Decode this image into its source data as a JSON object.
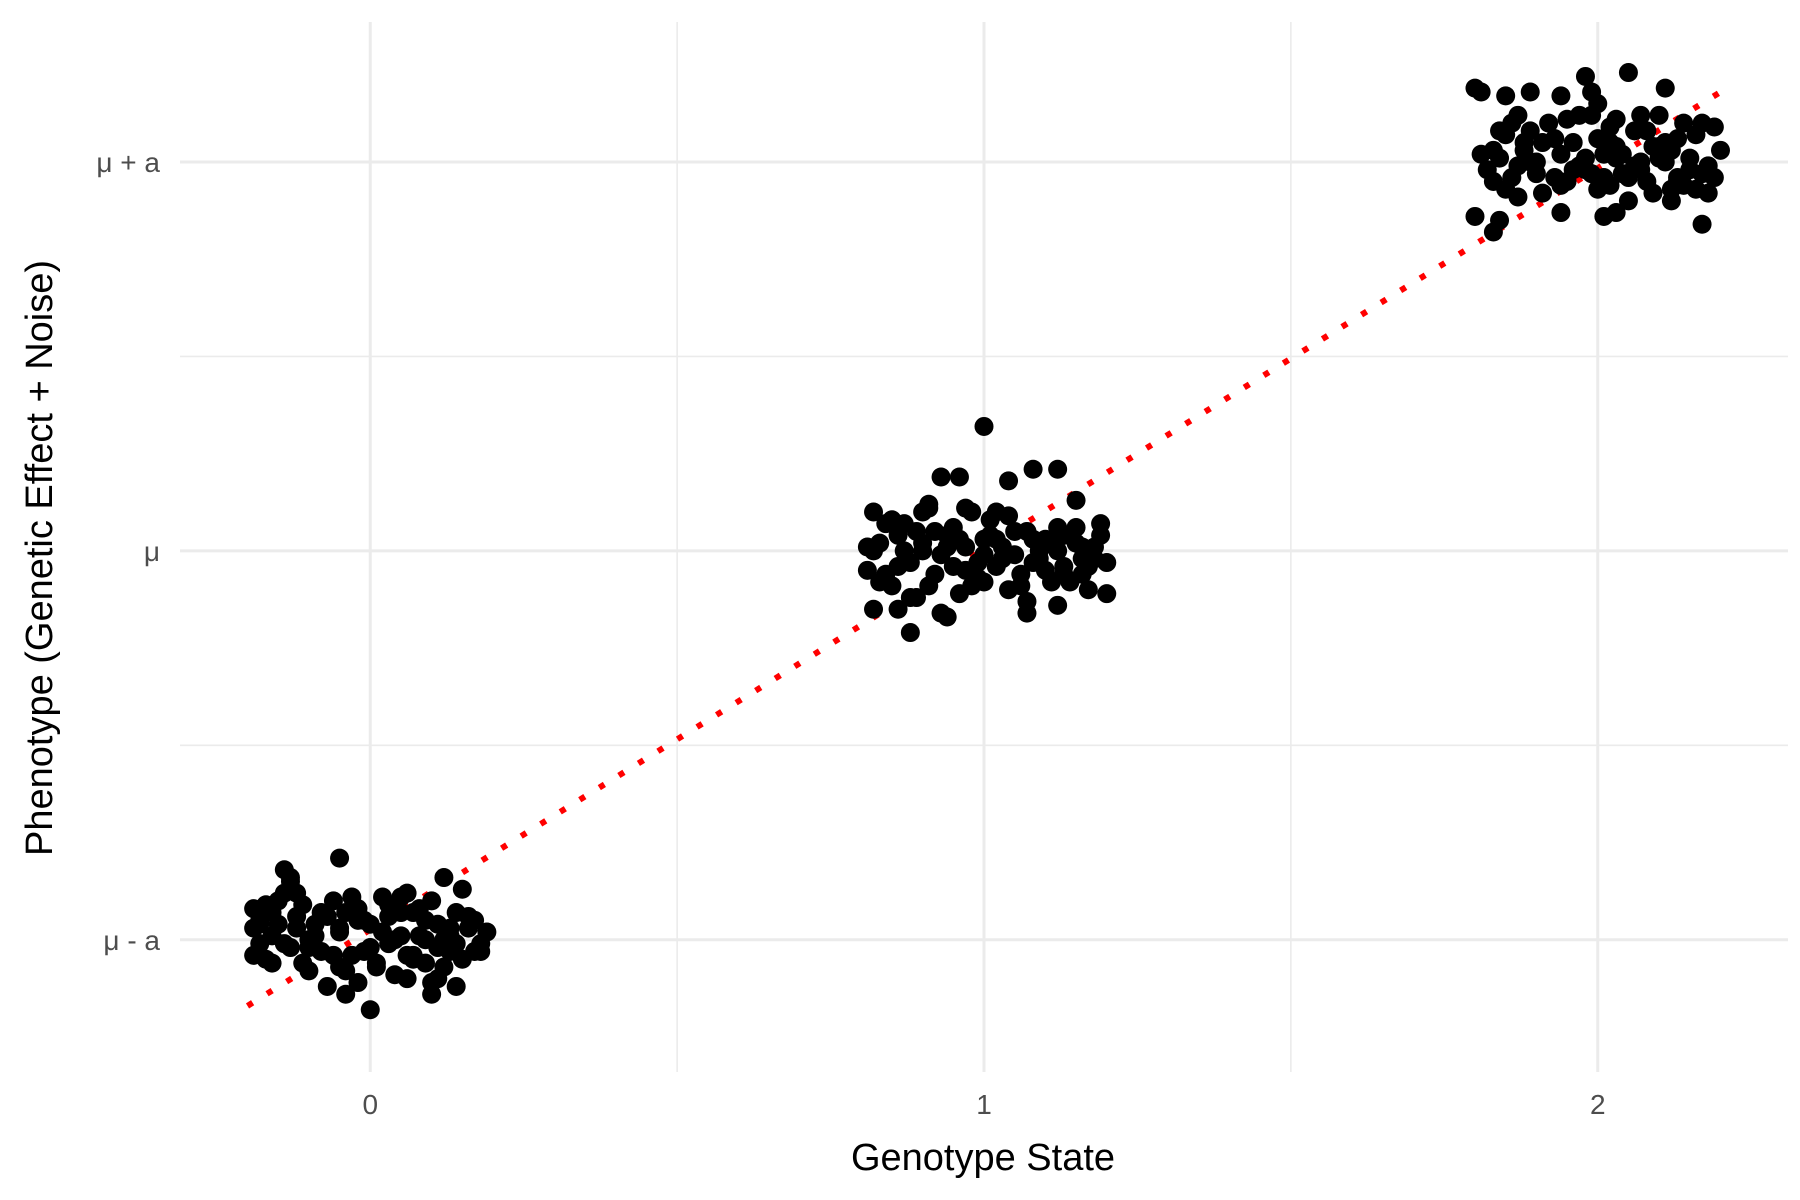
{
  "chart_data": {
    "type": "scatter",
    "title": "",
    "xlabel": "Genotype State",
    "ylabel": "Phenotype (Genetic Effect + Noise)",
    "xlim": [
      -0.31,
      2.31
    ],
    "ylim": [
      -1.34,
      1.36
    ],
    "x_ticks": [
      0,
      1,
      2
    ],
    "x_tick_labels": [
      "0",
      "1",
      "2"
    ],
    "y_ticks": [
      -1,
      0,
      1
    ],
    "y_tick_labels": [
      "μ - a",
      "μ",
      "μ + a"
    ],
    "grid": true,
    "legend": "none",
    "colors": {
      "points": "#000000",
      "trend": "#ff0000",
      "grid": "#ebebeb"
    },
    "trend_line": {
      "style": "dotted",
      "x": [
        -0.2,
        2.2
      ],
      "y": [
        -1.17,
        1.18
      ]
    },
    "series": [
      {
        "points": [
          [
            -0.19,
            -0.97
          ],
          [
            -0.18,
            -0.95
          ],
          [
            -0.16,
            -1.06
          ],
          [
            -0.14,
            -0.88
          ],
          [
            -0.12,
            -0.94
          ],
          [
            -0.1,
            -1.08
          ],
          [
            -0.09,
            -0.99
          ],
          [
            -0.07,
            -1.12
          ],
          [
            -0.05,
            -0.97
          ],
          [
            -0.03,
            -1.04
          ],
          [
            -0.02,
            -0.92
          ],
          [
            0.0,
            -1.02
          ],
          [
            0.02,
            -0.98
          ],
          [
            0.04,
            -1.09
          ],
          [
            0.05,
            -0.93
          ],
          [
            0.07,
            -1.05
          ],
          [
            0.09,
            -1.0
          ],
          [
            0.11,
            -0.96
          ],
          [
            0.12,
            -1.07
          ],
          [
            0.14,
            -1.01
          ],
          [
            0.16,
            -0.94
          ],
          [
            0.17,
            -1.03
          ],
          [
            0.19,
            -0.98
          ],
          [
            0.13,
            -0.99
          ],
          [
            0.1,
            -1.11
          ],
          [
            0.08,
            -0.92
          ],
          [
            0.06,
            -1.1
          ],
          [
            0.03,
            -0.91
          ],
          [
            0.01,
            -1.06
          ],
          [
            -0.01,
            -0.95
          ],
          [
            -0.04,
            -1.08
          ],
          [
            -0.06,
            -0.9
          ],
          [
            -0.08,
            -1.03
          ],
          [
            -0.11,
            -0.91
          ],
          [
            -0.13,
            -1.02
          ],
          [
            -0.15,
            -0.9
          ],
          [
            -0.17,
            -1.05
          ],
          [
            -0.19,
            -0.92
          ],
          [
            -0.18,
            -1.01
          ],
          [
            -0.16,
            -0.99
          ],
          [
            -0.13,
            -0.85
          ],
          [
            -0.11,
            -1.06
          ],
          [
            -0.09,
            -0.96
          ],
          [
            -0.06,
            -1.04
          ],
          [
            -0.04,
            -0.93
          ],
          [
            -0.02,
            -1.11
          ],
          [
            0.0,
            -0.96
          ],
          [
            0.03,
            -1.01
          ],
          [
            0.05,
            -0.89
          ],
          [
            0.07,
            -1.04
          ],
          [
            0.09,
            -0.95
          ],
          [
            0.11,
            -1.1
          ],
          [
            0.13,
            -0.97
          ],
          [
            0.15,
            -1.05
          ],
          [
            0.17,
            -0.95
          ],
          [
            0.18,
            -1.03
          ],
          [
            0.14,
            -0.93
          ],
          [
            0.12,
            -1.0
          ],
          [
            0.1,
            -0.9
          ],
          [
            0.08,
            -0.99
          ],
          [
            0.06,
            -0.88
          ],
          [
            0.04,
            -1.0
          ],
          [
            0.02,
            -0.89
          ],
          [
            -0.01,
            -1.03
          ],
          [
            -0.03,
            -0.89
          ],
          [
            -0.05,
            -1.07
          ],
          [
            -0.07,
            -0.94
          ],
          [
            -0.1,
            -1.0
          ],
          [
            -0.12,
            -0.88
          ],
          [
            -0.14,
            -1.01
          ],
          [
            -0.17,
            -0.91
          ],
          [
            -0.19,
            -1.04
          ],
          [
            -0.15,
            -0.96
          ],
          [
            -0.08,
            -0.93
          ],
          [
            0.01,
            -1.07
          ],
          [
            0.11,
            -1.02
          ],
          [
            0.16,
            -0.97
          ],
          [
            -0.02,
            -0.95
          ],
          [
            0.09,
            -1.06
          ],
          [
            0.15,
            -0.87
          ],
          [
            -0.05,
            -0.98
          ],
          [
            0.03,
            -0.94
          ],
          [
            -0.12,
            -0.97
          ],
          [
            -0.18,
            -0.96
          ],
          [
            0.07,
            -0.93
          ],
          [
            0.13,
            -1.03
          ],
          [
            -0.16,
            -0.93
          ],
          [
            0.05,
            -0.99
          ],
          [
            -0.1,
            -1.02
          ],
          [
            0.18,
            -1.01
          ],
          [
            -0.13,
            -0.84
          ],
          [
            0.12,
            -0.84
          ],
          [
            -0.04,
            -1.14
          ],
          [
            0.0,
            -1.18
          ],
          [
            0.1,
            -1.14
          ],
          [
            -0.05,
            -0.79
          ],
          [
            0.14,
            -1.12
          ],
          [
            -0.14,
            -0.82
          ],
          [
            -0.17,
            -0.93
          ],
          [
            0.06,
            -1.04
          ]
        ]
      },
      {
        "points": [
          [
            0.81,
            -0.05
          ],
          [
            0.83,
            0.02
          ],
          [
            0.85,
            -0.09
          ],
          [
            0.87,
            0.07
          ],
          [
            0.88,
            -0.03
          ],
          [
            0.9,
            0.1
          ],
          [
            0.92,
            -0.06
          ],
          [
            0.94,
            0.04
          ],
          [
            0.96,
            -0.11
          ],
          [
            0.97,
            0.01
          ],
          [
            0.99,
            -0.07
          ],
          [
            1.01,
            0.08
          ],
          [
            1.03,
            -0.02
          ],
          [
            1.05,
            0.05
          ],
          [
            1.06,
            -0.09
          ],
          [
            1.08,
            0.03
          ],
          [
            1.1,
            -0.05
          ],
          [
            1.12,
            0.06
          ],
          [
            1.13,
            -0.04
          ],
          [
            1.15,
            0.02
          ],
          [
            1.17,
            -0.1
          ],
          [
            1.19,
            0.07
          ],
          [
            1.2,
            -0.03
          ],
          [
            1.18,
            0.01
          ],
          [
            1.16,
            -0.06
          ],
          [
            1.14,
            0.04
          ],
          [
            1.11,
            -0.08
          ],
          [
            1.09,
            0.0
          ],
          [
            1.07,
            -0.13
          ],
          [
            1.04,
            0.09
          ],
          [
            1.02,
            -0.04
          ],
          [
            1.0,
            0.03
          ],
          [
            0.98,
            -0.09
          ],
          [
            0.95,
            0.06
          ],
          [
            0.93,
            -0.01
          ],
          [
            0.91,
            0.12
          ],
          [
            0.89,
            -0.12
          ],
          [
            0.86,
            0.04
          ],
          [
            0.84,
            -0.06
          ],
          [
            0.82,
            0.0
          ],
          [
            0.82,
            -0.15
          ],
          [
            0.85,
            0.08
          ],
          [
            0.88,
            -0.12
          ],
          [
            0.9,
            0.02
          ],
          [
            0.93,
            -0.16
          ],
          [
            0.95,
            -0.04
          ],
          [
            0.98,
            0.1
          ],
          [
            1.0,
            -0.01
          ],
          [
            1.02,
            0.03
          ],
          [
            1.04,
            -0.1
          ],
          [
            1.07,
            0.05
          ],
          [
            1.09,
            -0.02
          ],
          [
            1.11,
            0.02
          ],
          [
            1.13,
            -0.06
          ],
          [
            1.15,
            0.06
          ],
          [
            1.17,
            -0.04
          ],
          [
            1.19,
            0.04
          ],
          [
            1.16,
            -0.02
          ],
          [
            1.12,
            0.0
          ],
          [
            1.06,
            -0.06
          ],
          [
            1.03,
            0.01
          ],
          [
            0.99,
            -0.03
          ],
          [
            0.94,
            0.01
          ],
          [
            0.91,
            -0.09
          ],
          [
            0.87,
            0.0
          ],
          [
            0.83,
            -0.08
          ],
          [
            0.81,
            0.01
          ],
          [
            0.86,
            -0.04
          ],
          [
            0.92,
            0.05
          ],
          [
            0.97,
            -0.05
          ],
          [
            1.01,
            0.04
          ],
          [
            1.05,
            -0.01
          ],
          [
            1.1,
            0.03
          ],
          [
            1.14,
            -0.08
          ],
          [
            1.18,
            -0.02
          ],
          [
            1.08,
            -0.03
          ],
          [
            0.96,
            0.03
          ],
          [
            0.89,
            0.05
          ],
          [
            1.13,
            0.04
          ],
          [
            1.2,
            -0.11
          ],
          [
            1.0,
            0.32
          ],
          [
            0.93,
            0.19
          ],
          [
            0.96,
            0.19
          ],
          [
            1.04,
            0.18
          ],
          [
            1.08,
            0.21
          ],
          [
            1.12,
            0.21
          ],
          [
            1.02,
            0.1
          ],
          [
            0.82,
            0.1
          ],
          [
            0.84,
            0.07
          ],
          [
            1.15,
            0.13
          ],
          [
            0.91,
            0.11
          ],
          [
            0.97,
            0.11
          ],
          [
            0.88,
            -0.21
          ],
          [
            0.94,
            -0.17
          ],
          [
            1.07,
            -0.16
          ],
          [
            1.12,
            -0.14
          ],
          [
            0.86,
            -0.15
          ],
          [
            1.0,
            -0.08
          ],
          [
            0.9,
            0.0
          ],
          [
            1.16,
            0.01
          ]
        ]
      },
      {
        "points": [
          [
            1.81,
            1.02
          ],
          [
            1.83,
            0.95
          ],
          [
            1.85,
            1.07
          ],
          [
            1.87,
            0.91
          ],
          [
            1.88,
            1.03
          ],
          [
            1.9,
            0.97
          ],
          [
            1.92,
            1.1
          ],
          [
            1.94,
            0.94
          ],
          [
            1.96,
            1.05
          ],
          [
            1.97,
            0.99
          ],
          [
            1.99,
            1.12
          ],
          [
            2.01,
            0.96
          ],
          [
            2.03,
            1.04
          ],
          [
            2.05,
            0.9
          ],
          [
            2.06,
            1.08
          ],
          [
            2.08,
            0.95
          ],
          [
            2.1,
            1.01
          ],
          [
            2.12,
            0.93
          ],
          [
            2.13,
            1.06
          ],
          [
            2.15,
            0.98
          ],
          [
            2.17,
            1.1
          ],
          [
            2.19,
            0.96
          ],
          [
            2.2,
            1.03
          ],
          [
            2.18,
            0.99
          ],
          [
            2.16,
            1.07
          ],
          [
            2.14,
            0.94
          ],
          [
            2.11,
            1.05
          ],
          [
            2.09,
            0.92
          ],
          [
            2.07,
            1.0
          ],
          [
            2.04,
            0.97
          ],
          [
            2.02,
            1.09
          ],
          [
            2.0,
            0.93
          ],
          [
            1.98,
            1.01
          ],
          [
            1.95,
            0.95
          ],
          [
            1.93,
            1.06
          ],
          [
            1.91,
            0.92
          ],
          [
            1.89,
            1.0
          ],
          [
            1.86,
            0.96
          ],
          [
            1.84,
            1.08
          ],
          [
            1.82,
            0.98
          ],
          [
            1.83,
            1.03
          ],
          [
            1.85,
            0.93
          ],
          [
            1.88,
            1.05
          ],
          [
            1.9,
            1.0
          ],
          [
            1.93,
            0.96
          ],
          [
            1.95,
            1.11
          ],
          [
            1.98,
            0.98
          ],
          [
            2.0,
            1.06
          ],
          [
            2.02,
            0.94
          ],
          [
            2.04,
            1.02
          ],
          [
            2.07,
            0.98
          ],
          [
            2.09,
            1.04
          ],
          [
            2.11,
            1.0
          ],
          [
            2.13,
            0.95
          ],
          [
            2.15,
            1.01
          ],
          [
            2.17,
            0.97
          ],
          [
            2.12,
            1.03
          ],
          [
            2.06,
            0.99
          ],
          [
            2.01,
            1.02
          ],
          [
            1.96,
            0.98
          ],
          [
            1.91,
            1.05
          ],
          [
            1.87,
            0.99
          ],
          [
            1.84,
            1.01
          ],
          [
            2.1,
            1.04
          ],
          [
            2.05,
            0.96
          ],
          [
            1.99,
            0.97
          ],
          [
            1.94,
            1.02
          ],
          [
            1.89,
            1.08
          ],
          [
            2.16,
            0.93
          ],
          [
            2.03,
            1.01
          ],
          [
            1.8,
            1.19
          ],
          [
            1.81,
            1.18
          ],
          [
            1.85,
            1.17
          ],
          [
            1.89,
            1.18
          ],
          [
            1.94,
            1.17
          ],
          [
            1.98,
            1.22
          ],
          [
            2.0,
            1.15
          ],
          [
            2.05,
            1.23
          ],
          [
            2.11,
            1.19
          ],
          [
            2.03,
            1.11
          ],
          [
            2.07,
            1.12
          ],
          [
            2.1,
            1.12
          ],
          [
            1.8,
            0.86
          ],
          [
            1.84,
            0.85
          ],
          [
            2.01,
            0.86
          ],
          [
            2.12,
            0.9
          ],
          [
            2.17,
            0.84
          ],
          [
            1.87,
            1.12
          ],
          [
            1.83,
            0.82
          ],
          [
            1.94,
            0.87
          ],
          [
            1.99,
            1.18
          ],
          [
            2.02,
            1.05
          ],
          [
            2.08,
            1.08
          ],
          [
            2.14,
            1.1
          ],
          [
            2.19,
            1.09
          ],
          [
            2.18,
            0.92
          ],
          [
            1.86,
            1.1
          ],
          [
            1.97,
            1.12
          ],
          [
            2.03,
            0.87
          ],
          [
            2.13,
            0.96
          ]
        ]
      }
    ]
  }
}
